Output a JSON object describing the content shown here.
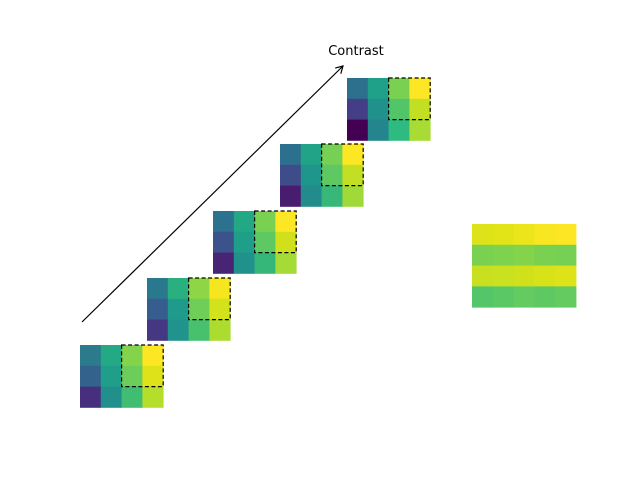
{
  "arrow_label": "Contrast",
  "colors": {
    "background": "#ffffff",
    "arrow": "#000000",
    "dashed_box": "#000000"
  },
  "matrices": [
    {
      "cells": [
        [
          "#2b7b8c",
          "#23a983",
          "#83d44a",
          "#fde725"
        ],
        [
          "#33638d",
          "#1f9e89",
          "#6ccd5a",
          "#dde318"
        ],
        [
          "#472f7d",
          "#21908d",
          "#40bd72",
          "#b5de2b"
        ]
      ]
    },
    {
      "cells": [
        [
          "#2a788e",
          "#2ab07f",
          "#8ed645",
          "#f6e620"
        ],
        [
          "#365d8d",
          "#1e9b8a",
          "#6ece58",
          "#d2e21b"
        ],
        [
          "#453781",
          "#20938c",
          "#48c16e",
          "#addc30"
        ]
      ]
    },
    {
      "cells": [
        [
          "#2c718e",
          "#22a884",
          "#7ad151",
          "#fde725"
        ],
        [
          "#3b528b",
          "#1f9e89",
          "#5ec962",
          "#d0e11c"
        ],
        [
          "#482475",
          "#21918c",
          "#35b779",
          "#a5db36"
        ]
      ]
    },
    {
      "cells": [
        [
          "#2d708e",
          "#20a386",
          "#75d054",
          "#fde725"
        ],
        [
          "#3e4c8a",
          "#1f968b",
          "#5ec962",
          "#c2df23"
        ],
        [
          "#481c6e",
          "#228c8d",
          "#37b878",
          "#a0da39"
        ]
      ]
    },
    {
      "cells": [
        [
          "#2d708e",
          "#1fa088",
          "#7ad151",
          "#fde725"
        ],
        [
          "#433e85",
          "#21918c",
          "#52c569",
          "#c2df23"
        ],
        [
          "#440154",
          "#25858e",
          "#2ebb7f",
          "#a8db34"
        ]
      ]
    }
  ],
  "side_panel": {
    "rows": [
      [
        "#dde318",
        "#e2e418",
        "#ece51b",
        "#f8e621",
        "#fde725"
      ],
      [
        "#7ad151",
        "#7ed34e",
        "#84d44b",
        "#7ad151",
        "#75d054"
      ],
      [
        "#c8e020",
        "#cae11f",
        "#d0e11c",
        "#d8e219",
        "#dde318"
      ],
      [
        "#54c568",
        "#5ac864",
        "#63cb5f",
        "#5ec962",
        "#63cb5f"
      ]
    ]
  }
}
